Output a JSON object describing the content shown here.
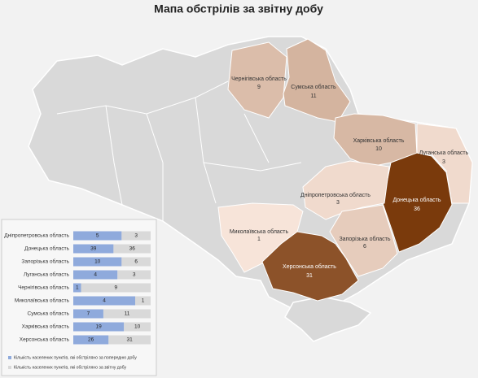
{
  "title": "Мапа обстрілів за звітну добу",
  "regions": [
    {
      "name": "Чернігівська область",
      "value": 9
    },
    {
      "name": "Сумська область",
      "value": 11
    },
    {
      "name": "Харківська область",
      "value": 10
    },
    {
      "name": "Луганська область",
      "value": 3
    },
    {
      "name": "Донецька область",
      "value": 36
    },
    {
      "name": "Дніпропетровська область",
      "value": 3
    },
    {
      "name": "Запорізька область",
      "value": 6
    },
    {
      "name": "Миколаївська область",
      "value": 1
    },
    {
      "name": "Херсонська область",
      "value": 31
    }
  ],
  "chart_data": {
    "type": "bar",
    "orientation": "horizontal",
    "stacking": "percent",
    "categories": [
      "Дніпропетровська область",
      "Донецька область",
      "Запорізька область",
      "Луганська область",
      "Чернігівська область",
      "Миколаївська область",
      "Сумська область",
      "Харківська область",
      "Херсонська область"
    ],
    "series": [
      {
        "name": "Кількість населених пунктів, які обстріляно за попередню добу",
        "color": "#8faadc",
        "values": [
          5,
          39,
          10,
          4,
          1,
          4,
          7,
          19,
          26
        ]
      },
      {
        "name": "Кількість населених пунктів, які обстріляно за звітну добу",
        "color": "#d9d9d9",
        "values": [
          3,
          36,
          6,
          3,
          9,
          1,
          11,
          10,
          31
        ]
      }
    ]
  }
}
